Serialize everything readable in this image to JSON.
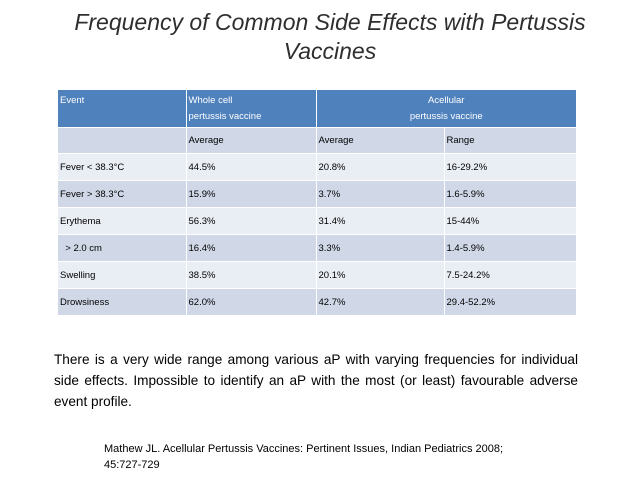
{
  "slide": {
    "title": "Frequency of Common Side Effects with Pertussis Vaccines",
    "table": {
      "header_row1": {
        "event": "Event",
        "whole_cell": "Whole cell",
        "whole_cell_sub": "pertussis vaccine",
        "acellular": "Acellular",
        "acellular_sub": "pertussis vaccine"
      },
      "header_row2": {
        "blank": "",
        "wc_average": "Average",
        "ap_average": "Average",
        "ap_range": "Range"
      },
      "rows": [
        {
          "event": "Fever < 38.3°C",
          "wc_avg": "44.5%",
          "ap_avg": "20.8%",
          "ap_range": "16-29.2%"
        },
        {
          "event": "Fever > 38.3°C",
          "wc_avg": "15.9%",
          "ap_avg": "3.7%",
          "ap_range": "1.6-5.9%"
        },
        {
          "event": "Erythema",
          "wc_avg": "56.3%",
          "ap_avg": "31.4%",
          "ap_range": "15-44%"
        },
        {
          "event": "  > 2.0 cm",
          "wc_avg": "16.4%",
          "ap_avg": "3.3%",
          "ap_range": "1.4-5.9%"
        },
        {
          "event": "Swelling",
          "wc_avg": "38.5%",
          "ap_avg": "20.1%",
          "ap_range": "7.5-24.2%"
        },
        {
          "event": "Drowsiness",
          "wc_avg": "62.0%",
          "ap_avg": "42.7%",
          "ap_range": "29.4-52.2%"
        }
      ]
    },
    "paragraph": "There is a very wide range among various aP with varying frequencies for individual side effects. Impossible to identify an aP with the most (or least) favourable adverse event profile.",
    "reference_line1": "Mathew JL. Acellular Pertussis Vaccines: Pertinent Issues, Indian Pediatrics 2008;",
    "reference_line2": "45:727-729"
  },
  "colors": {
    "header_blue": "#4f81bd",
    "row_light": "#e9edf4",
    "row_dark": "#d0d8e8"
  }
}
